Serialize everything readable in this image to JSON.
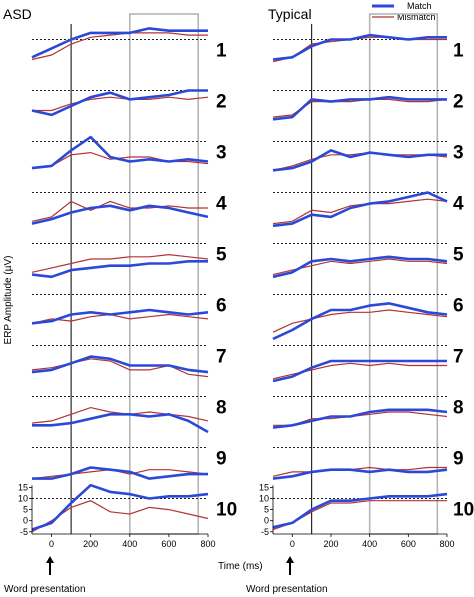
{
  "chart_data": [
    {
      "type": "line",
      "title": "ASD",
      "xlabel": "Time (ms)",
      "ylabel": "ERP Amplitude (µV)",
      "xlim": [
        -100,
        800
      ],
      "xticks": [
        "0",
        "200",
        "400",
        "600",
        "800"
      ],
      "yticks": [
        "-5",
        "0",
        "5",
        "10",
        "15"
      ],
      "onset_ms": 100,
      "window_ms": [
        400,
        750
      ],
      "annotation": "Word presentation",
      "series_names": [
        "Match",
        "Mismatch"
      ],
      "conditions": [
        {
          "label": "1",
          "x": [
            -100,
            0,
            100,
            200,
            300,
            400,
            500,
            600,
            700,
            800
          ],
          "match": [
            2,
            6,
            10,
            13,
            13,
            13,
            15,
            14,
            14,
            14
          ],
          "mismatch": [
            1,
            3,
            8,
            11,
            12,
            13,
            13,
            13,
            12,
            12
          ]
        },
        {
          "label": "2",
          "x": [
            -100,
            0,
            100,
            200,
            300,
            400,
            500,
            600,
            700,
            800
          ],
          "match": [
            1,
            -1,
            3,
            7,
            9,
            6,
            7,
            8,
            10,
            10
          ],
          "mismatch": [
            1,
            1,
            4,
            6,
            7,
            6,
            6,
            7,
            6,
            7
          ]
        },
        {
          "label": "3",
          "x": [
            -100,
            0,
            100,
            200,
            300,
            400,
            500,
            600,
            700,
            800
          ],
          "match": [
            -2,
            -1,
            6,
            12,
            3,
            1,
            2,
            1,
            2,
            1
          ],
          "mismatch": [
            -2,
            -1,
            4,
            5,
            2,
            3,
            3,
            1,
            1,
            0
          ]
        },
        {
          "label": "4",
          "x": [
            -100,
            0,
            100,
            200,
            300,
            400,
            500,
            600,
            700,
            800
          ],
          "match": [
            -4,
            -2,
            1,
            3,
            4,
            2,
            4,
            3,
            1,
            -1
          ],
          "mismatch": [
            -3,
            -1,
            6,
            2,
            6,
            3,
            3,
            4,
            3,
            3
          ]
        },
        {
          "label": "5",
          "x": [
            -100,
            0,
            100,
            200,
            300,
            400,
            500,
            600,
            700,
            800
          ],
          "match": [
            -4,
            -5,
            -2,
            -1,
            0,
            0,
            1,
            1,
            2,
            2
          ],
          "mismatch": [
            -3,
            -1,
            1,
            3,
            3,
            4,
            4,
            5,
            4,
            3
          ]
        },
        {
          "label": "6",
          "x": [
            -100,
            0,
            100,
            200,
            300,
            400,
            500,
            600,
            700,
            800
          ],
          "match": [
            -3,
            -2,
            1,
            2,
            1,
            2,
            3,
            2,
            1,
            2
          ],
          "mismatch": [
            -3,
            -1,
            -2,
            0,
            1,
            -1,
            0,
            1,
            0,
            -1
          ]
        },
        {
          "label": "7",
          "x": [
            -100,
            0,
            100,
            200,
            300,
            400,
            500,
            600,
            700,
            800
          ],
          "match": [
            -2,
            -1,
            2,
            5,
            4,
            1,
            1,
            1,
            -1,
            -2
          ],
          "mismatch": [
            -1,
            0,
            2,
            4,
            3,
            -1,
            -1,
            1,
            -3,
            -4
          ]
        },
        {
          "label": "8",
          "x": [
            -100,
            0,
            100,
            200,
            300,
            400,
            500,
            600,
            700,
            800
          ],
          "match": [
            -3,
            -3,
            -2,
            0,
            2,
            2,
            1,
            2,
            -1,
            -6
          ],
          "mismatch": [
            -2,
            -1,
            2,
            5,
            3,
            2,
            3,
            2,
            1,
            -1
          ]
        },
        {
          "label": "9",
          "x": [
            -100,
            0,
            100,
            200,
            300,
            400,
            500,
            600,
            700,
            800
          ],
          "match": [
            -4,
            -4,
            -2,
            1,
            0,
            -1,
            -4,
            -3,
            -2,
            -2
          ],
          "mismatch": [
            -4,
            -3,
            -2,
            -1,
            0,
            -2,
            0,
            0,
            -1,
            -2
          ]
        },
        {
          "label": "10",
          "x": [
            -100,
            0,
            100,
            200,
            300,
            400,
            500,
            600,
            700,
            800
          ],
          "match": [
            -4,
            -1,
            8,
            16,
            13,
            12,
            10,
            11,
            11,
            12
          ],
          "mismatch": [
            -5,
            0,
            6,
            9,
            4,
            3,
            6,
            5,
            3,
            1
          ]
        }
      ]
    },
    {
      "type": "line",
      "title": "Typical",
      "xlabel": "Time (ms)",
      "ylabel": "",
      "xlim": [
        -100,
        800
      ],
      "xticks": [
        "0",
        "200",
        "400",
        "600",
        "800"
      ],
      "yticks": [
        "-5",
        "0",
        "5",
        "10",
        "15"
      ],
      "onset_ms": 100,
      "window_ms": [
        400,
        750
      ],
      "annotation": "Word presentation",
      "series_names": [
        "Match",
        "Mismatch"
      ],
      "conditions": [
        {
          "label": "1",
          "x": [
            -100,
            0,
            100,
            200,
            300,
            400,
            500,
            600,
            700,
            800
          ],
          "match": [
            1,
            2,
            7,
            10,
            10,
            12,
            11,
            10,
            11,
            11
          ],
          "mismatch": [
            0,
            2,
            8,
            9,
            10,
            11,
            11,
            10,
            10,
            10
          ]
        },
        {
          "label": "2",
          "x": [
            -100,
            0,
            100,
            200,
            300,
            400,
            500,
            600,
            700,
            800
          ],
          "match": [
            -3,
            -2,
            6,
            5,
            6,
            6,
            7,
            6,
            6,
            6
          ],
          "mismatch": [
            -2,
            -1,
            5,
            5,
            5,
            6,
            6,
            5,
            5,
            6
          ]
        },
        {
          "label": "3",
          "x": [
            -100,
            0,
            100,
            200,
            300,
            400,
            500,
            600,
            700,
            800
          ],
          "match": [
            -3,
            -2,
            1,
            6,
            3,
            5,
            4,
            3,
            4,
            4
          ],
          "mismatch": [
            -3,
            -1,
            2,
            4,
            4,
            5,
            4,
            4,
            4,
            3
          ]
        },
        {
          "label": "4",
          "x": [
            -100,
            0,
            100,
            200,
            300,
            400,
            500,
            600,
            700,
            800
          ],
          "match": [
            -5,
            -4,
            0,
            -1,
            3,
            5,
            6,
            8,
            10,
            6
          ],
          "mismatch": [
            -4,
            -3,
            2,
            1,
            4,
            5,
            5,
            6,
            7,
            6
          ]
        },
        {
          "label": "5",
          "x": [
            -100,
            0,
            100,
            200,
            300,
            400,
            500,
            600,
            700,
            800
          ],
          "match": [
            -5,
            -3,
            2,
            3,
            2,
            3,
            4,
            3,
            3,
            2
          ],
          "mismatch": [
            -4,
            -2,
            0,
            2,
            1,
            2,
            3,
            2,
            2,
            1
          ]
        },
        {
          "label": "6",
          "x": [
            -100,
            0,
            100,
            200,
            300,
            400,
            500,
            600,
            700,
            800
          ],
          "match": [
            -10,
            -6,
            -1,
            3,
            3,
            5,
            6,
            4,
            2,
            1
          ],
          "mismatch": [
            -7,
            -3,
            -1,
            1,
            2,
            2,
            3,
            2,
            1,
            0
          ]
        },
        {
          "label": "7",
          "x": [
            -100,
            0,
            100,
            200,
            300,
            400,
            500,
            600,
            700,
            800
          ],
          "match": [
            -6,
            -4,
            0,
            3,
            3,
            3,
            3,
            3,
            3,
            3
          ],
          "mismatch": [
            -5,
            -3,
            -1,
            1,
            2,
            1,
            2,
            1,
            1,
            1
          ]
        },
        {
          "label": "8",
          "x": [
            -100,
            0,
            100,
            200,
            300,
            400,
            500,
            600,
            700,
            800
          ],
          "match": [
            -4,
            -3,
            -1,
            1,
            1,
            3,
            4,
            4,
            4,
            3
          ],
          "mismatch": [
            -3,
            -3,
            0,
            0,
            1,
            2,
            3,
            3,
            2,
            1
          ]
        },
        {
          "label": "9",
          "x": [
            -100,
            0,
            100,
            200,
            300,
            400,
            500,
            600,
            700,
            800
          ],
          "match": [
            -4,
            -3,
            -1,
            0,
            0,
            -1,
            0,
            -1,
            -1,
            0
          ],
          "mismatch": [
            -3,
            -1,
            -1,
            0,
            0,
            1,
            0,
            0,
            1,
            1
          ]
        },
        {
          "label": "10",
          "x": [
            -100,
            0,
            100,
            200,
            300,
            400,
            500,
            600,
            700,
            800
          ],
          "match": [
            -3,
            -1,
            5,
            9,
            9,
            10,
            11,
            11,
            11,
            12
          ],
          "mismatch": [
            -4,
            -1,
            4,
            8,
            8,
            9,
            9,
            9,
            9,
            9
          ]
        }
      ]
    }
  ],
  "legend": {
    "placement": "top-right",
    "match_label": "Match",
    "mismatch_label": "Mismatch"
  },
  "colors": {
    "match": "#2b49d8",
    "mismatch": "#b33333",
    "window": "#b5b5b5",
    "onset": "#000000"
  }
}
